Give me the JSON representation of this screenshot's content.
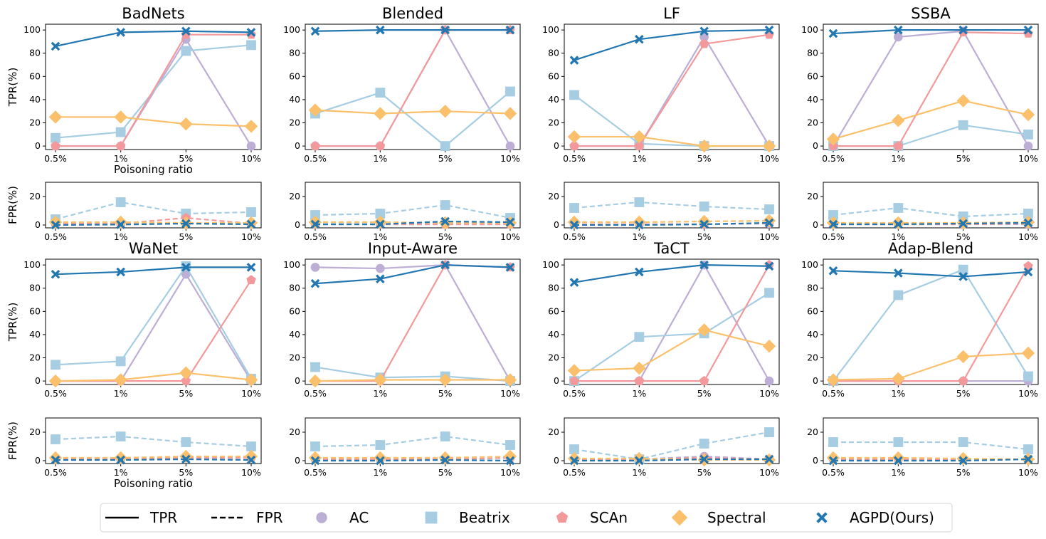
{
  "x_ticks": [
    "0.5%",
    "1%",
    "5%",
    "10%"
  ],
  "tpr_ylabel": "TPR(%)",
  "fpr_ylabel": "FPR(%)",
  "xlabel": "Poisoning ratio",
  "tpr_yticks": [
    0,
    20,
    40,
    60,
    80,
    100
  ],
  "tpr_ylim": [
    -3,
    105
  ],
  "fpr_yticks": [
    0,
    20
  ],
  "fpr_ylim": [
    -2,
    30
  ],
  "colors": {
    "AC": "#bcaed5",
    "Beatrix": "#a6cde2",
    "SCAn": "#f4999b",
    "Spectral": "#fbc06c",
    "AGPD(Ours)": "#2377b1",
    "axis": "#000000"
  },
  "legend": {
    "items": [
      {
        "label": "TPR",
        "kind": "solid"
      },
      {
        "label": "FPR",
        "kind": "dashed"
      },
      {
        "label": "AC",
        "kind": "circle"
      },
      {
        "label": "Beatrix",
        "kind": "square"
      },
      {
        "label": "SCAn",
        "kind": "pentagon"
      },
      {
        "label": "Spectral",
        "kind": "diamond"
      },
      {
        "label": "AGPD(Ours)",
        "kind": "x"
      }
    ]
  },
  "chart_data": [
    {
      "type": "line",
      "title": "BadNets",
      "x": [
        "0.5%",
        "1%",
        "5%",
        "10%"
      ],
      "tpr": {
        "AC": [
          0,
          0,
          92,
          0
        ],
        "Beatrix": [
          7,
          12,
          82,
          87
        ],
        "SCAn": [
          0,
          0,
          96,
          96
        ],
        "Spectral": [
          25,
          25,
          19,
          17
        ],
        "AGPD(Ours)": [
          86,
          98,
          99,
          98
        ]
      },
      "fpr": {
        "AC": [
          0.5,
          0.5,
          1.5,
          0.5
        ],
        "Beatrix": [
          4,
          16,
          8,
          9
        ],
        "SCAn": [
          1,
          1,
          5,
          1
        ],
        "Spectral": [
          2,
          2,
          1.5,
          1.5
        ],
        "AGPD(Ours)": [
          0,
          0.3,
          1,
          0.5
        ]
      }
    },
    {
      "type": "line",
      "title": "Blended",
      "x": [
        "0.5%",
        "1%",
        "5%",
        "10%"
      ],
      "tpr": {
        "AC": [
          0,
          0,
          100,
          0
        ],
        "Beatrix": [
          28,
          46,
          0,
          47
        ],
        "SCAn": [
          0,
          0,
          100,
          100
        ],
        "Spectral": [
          31,
          28,
          30,
          28
        ],
        "AGPD(Ours)": [
          99,
          100,
          100,
          100
        ]
      },
      "fpr": {
        "AC": [
          0.5,
          0.5,
          0.5,
          0.5
        ],
        "Beatrix": [
          7,
          8,
          14,
          5
        ],
        "SCAn": [
          0.5,
          0.5,
          0.5,
          0.5
        ],
        "Spectral": [
          2,
          2,
          1.5,
          1.5
        ],
        "AGPD(Ours)": [
          0.5,
          0.5,
          2.5,
          2
        ]
      }
    },
    {
      "type": "line",
      "title": "LF",
      "x": [
        "0.5%",
        "1%",
        "5%",
        "10%"
      ],
      "tpr": {
        "AC": [
          0,
          0,
          94,
          0
        ],
        "Beatrix": [
          44,
          2,
          0,
          0
        ],
        "SCAn": [
          0,
          0,
          88,
          96
        ],
        "Spectral": [
          8,
          8,
          0,
          0
        ],
        "AGPD(Ours)": [
          74,
          92,
          99,
          100
        ]
      },
      "fpr": {
        "AC": [
          0.5,
          0.5,
          0.5,
          1
        ],
        "Beatrix": [
          12,
          16,
          13,
          11
        ],
        "SCAn": [
          0.5,
          0.5,
          0.5,
          1.5
        ],
        "Spectral": [
          2,
          2,
          2.5,
          3
        ],
        "AGPD(Ours)": [
          0,
          0,
          0.5,
          1.5
        ]
      }
    },
    {
      "type": "line",
      "title": "SSBA",
      "x": [
        "0.5%",
        "1%",
        "5%",
        "10%"
      ],
      "tpr": {
        "AC": [
          0,
          94,
          99,
          0
        ],
        "Beatrix": [
          0,
          0,
          18,
          10
        ],
        "SCAn": [
          0,
          0,
          98,
          97
        ],
        "Spectral": [
          6,
          22,
          39,
          27
        ],
        "AGPD(Ours)": [
          97,
          100,
          100,
          100
        ]
      },
      "fpr": {
        "AC": [
          0.5,
          0.5,
          0.5,
          0.5
        ],
        "Beatrix": [
          7,
          12,
          6,
          8
        ],
        "SCAn": [
          0.5,
          0.5,
          0.5,
          1
        ],
        "Spectral": [
          1.5,
          1.5,
          1.5,
          2
        ],
        "AGPD(Ours)": [
          0.5,
          0.5,
          1,
          1.5
        ]
      }
    },
    {
      "type": "line",
      "title": "WaNet",
      "x": [
        "0.5%",
        "1%",
        "5%",
        "10%"
      ],
      "tpr": {
        "AC": [
          0,
          0,
          92,
          0
        ],
        "Beatrix": [
          14,
          17,
          99,
          2
        ],
        "SCAn": [
          0,
          0,
          0,
          87
        ],
        "Spectral": [
          0,
          1,
          7,
          1
        ],
        "AGPD(Ours)": [
          92,
          94,
          98,
          98
        ]
      },
      "fpr": {
        "AC": [
          1,
          1,
          3,
          2
        ],
        "Beatrix": [
          15,
          17,
          13,
          10
        ],
        "SCAn": [
          1,
          1,
          2,
          2
        ],
        "Spectral": [
          2,
          2,
          3,
          3
        ],
        "AGPD(Ours)": [
          0.5,
          0.5,
          1,
          0.5
        ]
      }
    },
    {
      "type": "line",
      "title": "Input-Aware",
      "x": [
        "0.5%",
        "1%",
        "5%",
        "10%"
      ],
      "tpr": {
        "AC": [
          98,
          97,
          100,
          0
        ],
        "Beatrix": [
          12,
          3,
          4,
          0
        ],
        "SCAn": [
          0,
          0,
          100,
          98
        ],
        "Spectral": [
          0,
          1,
          1,
          1
        ],
        "AGPD(Ours)": [
          84,
          88,
          100,
          98
        ]
      },
      "fpr": {
        "AC": [
          1,
          1,
          1,
          2
        ],
        "Beatrix": [
          10,
          11,
          17,
          11
        ],
        "SCAn": [
          1,
          1,
          1,
          2
        ],
        "Spectral": [
          2,
          2,
          2,
          3
        ],
        "AGPD(Ours)": [
          0,
          0,
          0.5,
          0
        ]
      }
    },
    {
      "type": "line",
      "title": "TaCT",
      "x": [
        "0.5%",
        "1%",
        "5%",
        "10%"
      ],
      "tpr": {
        "AC": [
          0,
          0,
          100,
          0
        ],
        "Beatrix": [
          0,
          38,
          41,
          76
        ],
        "SCAn": [
          0,
          0,
          0,
          100
        ],
        "Spectral": [
          9,
          11,
          44,
          30
        ],
        "AGPD(Ours)": [
          85,
          94,
          100,
          99
        ]
      },
      "fpr": {
        "AC": [
          1,
          1,
          3,
          1
        ],
        "Beatrix": [
          8,
          1,
          12,
          20
        ],
        "SCAn": [
          1,
          1,
          2,
          1
        ],
        "Spectral": [
          1.5,
          1.5,
          0.5,
          0.5
        ],
        "AGPD(Ours)": [
          0,
          0,
          1,
          1
        ]
      }
    },
    {
      "type": "line",
      "title": "Adap-Blend",
      "x": [
        "0.5%",
        "1%",
        "5%",
        "10%"
      ],
      "tpr": {
        "AC": [
          0,
          0,
          0,
          0
        ],
        "Beatrix": [
          0,
          74,
          96,
          4
        ],
        "SCAn": [
          0,
          0,
          0,
          99
        ],
        "Spectral": [
          1,
          2,
          21,
          24
        ],
        "AGPD(Ours)": [
          95,
          93,
          90,
          94
        ]
      },
      "fpr": {
        "AC": [
          1,
          1,
          1,
          1
        ],
        "Beatrix": [
          13,
          13,
          13,
          8
        ],
        "SCAn": [
          1,
          1,
          1,
          1
        ],
        "Spectral": [
          2,
          2,
          1.5,
          1
        ],
        "AGPD(Ours)": [
          0,
          0,
          0,
          1
        ]
      }
    }
  ]
}
